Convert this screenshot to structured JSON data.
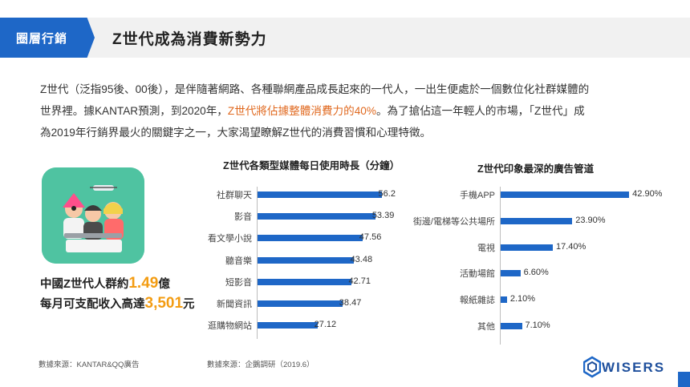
{
  "header": {
    "tag": "圈層行銷",
    "title": "Z世代成為消費新勢力"
  },
  "intro": {
    "line1": "Z世代（泛指95後、00後），是伴隨著網路、各種聯網產品成長起來的一代人，一出生便處於一個數位化社群媒體的",
    "line2a": "世界裡。據KANTAR預測，到2020年，",
    "line2hl": "Z世代將佔據整體消費力的40%",
    "line2b": "。為了搶佔這一年輕人的市場，「Z世代」成",
    "line3": "為2019年行銷界最火的關鍵字之一，大家渴望瞭解Z世代的消費習慣和心理特徵。"
  },
  "stats": {
    "pop_prefix": "中國Z世代人群約",
    "pop_value": "1.49",
    "pop_suffix": "億",
    "income_prefix": "每月可支配收入高達",
    "income_value": "3,501",
    "income_suffix": "元"
  },
  "chart_data": [
    {
      "type": "bar",
      "orientation": "horizontal",
      "title": "Z世代各類型媒體每日使用時長（分鐘）",
      "categories": [
        "社群聊天",
        "影音",
        "看文學小說",
        "聽音樂",
        "短影音",
        "新聞資訊",
        "逛購物網站"
      ],
      "values": [
        56.2,
        53.39,
        47.56,
        43.48,
        42.71,
        38.47,
        27.12
      ],
      "labels": [
        "56.2",
        "53.39",
        "47.56",
        "43.48",
        "42.71",
        "38.47",
        "27.12"
      ],
      "xlim": [
        0,
        60
      ]
    },
    {
      "type": "bar",
      "orientation": "horizontal",
      "title": "Z世代印象最深的廣告管道",
      "categories": [
        "手機APP",
        "街邊/電梯等公共場所",
        "電視",
        "活動場館",
        "報紙雜誌",
        "其他"
      ],
      "values": [
        42.9,
        23.9,
        17.4,
        6.6,
        2.1,
        7.1
      ],
      "labels": [
        "42.90%",
        "23.90%",
        "17.40%",
        "6.60%",
        "2.10%",
        "7.10%"
      ],
      "xlim": [
        0,
        45
      ]
    }
  ],
  "sources": {
    "left": "數據來源：KANTAR&QQ廣告",
    "right": "數據來源：企鵝調研（2019.6）"
  },
  "logo": {
    "text": "WISERS"
  },
  "colors": {
    "accent": "#1e67c7",
    "highlight": "#e0681e",
    "stat": "#f39c12",
    "icon_bg": "#4fc3a1"
  }
}
